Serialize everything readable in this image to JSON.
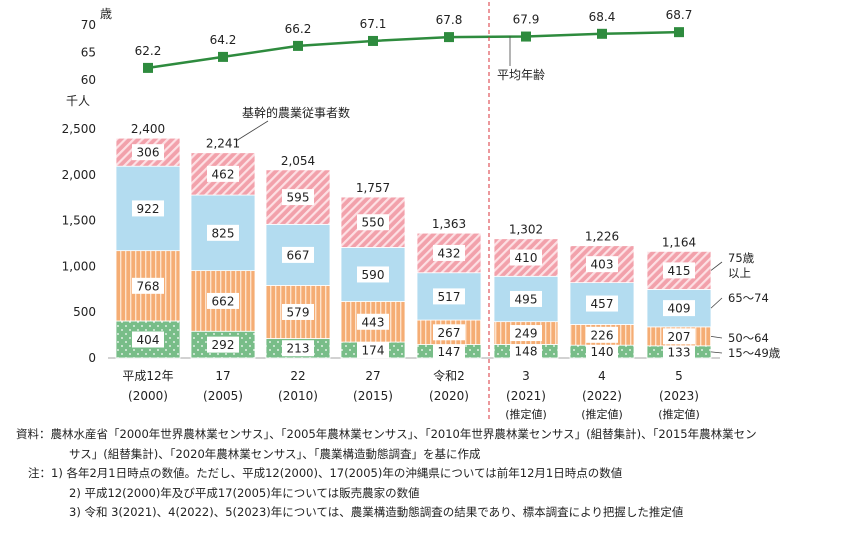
{
  "chart_data": [
    {
      "type": "line",
      "ylabel": "歳",
      "yticks": [
        70,
        65,
        60
      ],
      "ylim": [
        60,
        70
      ],
      "series": [
        {
          "name": "平均年齢",
          "values": [
            62.2,
            64.2,
            66.2,
            67.1,
            67.8,
            67.9,
            68.4,
            68.7
          ],
          "color": "#2e8b3e"
        }
      ]
    },
    {
      "type": "bar",
      "stacked": true,
      "ylabel": "千人",
      "ylim": [
        0,
        2500
      ],
      "yticks": [
        "2,500",
        "2,000",
        "1,500",
        "1,000",
        "500",
        "0"
      ],
      "annotation": "基幹的農業従事者数",
      "categories": [
        {
          "label": "平成12年",
          "year": "(2000)",
          "est": ""
        },
        {
          "label": "17",
          "year": "(2005)",
          "est": ""
        },
        {
          "label": "22",
          "year": "(2010)",
          "est": ""
        },
        {
          "label": "27",
          "year": "(2015)",
          "est": ""
        },
        {
          "label": "令和2",
          "year": "(2020)",
          "est": ""
        },
        {
          "label": "3",
          "year": "(2021)",
          "est": "(推定値)"
        },
        {
          "label": "4",
          "year": "(2022)",
          "est": "(推定値)"
        },
        {
          "label": "5",
          "year": "(2023)",
          "est": "(推定値)"
        }
      ],
      "totals": [
        "2,400",
        "2,241",
        "2,054",
        "1,757",
        "1,363",
        "1,302",
        "1,226",
        "1,164"
      ],
      "series": [
        {
          "name": "15～49歳",
          "values": [
            404,
            292,
            213,
            174,
            147,
            148,
            140,
            133
          ],
          "color": "#8cc89a"
        },
        {
          "name": "50～64",
          "values": [
            768,
            662,
            579,
            443,
            267,
            249,
            226,
            207
          ],
          "color": "#f6b680"
        },
        {
          "name": "65～74",
          "values": [
            922,
            825,
            667,
            590,
            517,
            495,
            457,
            409
          ],
          "color": "#b3dcf0"
        },
        {
          "name": "75歳以上",
          "values": [
            306,
            462,
            595,
            550,
            432,
            410,
            403,
            415
          ],
          "color": "#f2a9b2"
        }
      ],
      "legend_labels": [
        "75歳",
        "以上",
        "65～74",
        "50～64",
        "15～49歳"
      ]
    }
  ],
  "notes": {
    "source_head": "資料：",
    "source1": "農林水産省「2000年世界農林業センサス」、「2005年農林業センサス」、「2010年世界農林業センサス」(組替集計)、「2015年農林業セン",
    "source2": "サス」(組替集計)、「2020年農林業センサス」、「農業構造動態調査」を基に作成",
    "note_head": "注：",
    "note1": "1) 各年2月1日時点の数値。ただし、平成12(2000)、17(2005)年の沖縄県については前年12月1日時点の数値",
    "note2": "2) 平成12(2000)年及び平成17(2005)年については販売農家の数値",
    "note3": "3) 令和 3(2021)、4(2022)、5(2023)年については、農業構造動態調査の結果であり、標本調査により把握した推定値"
  }
}
